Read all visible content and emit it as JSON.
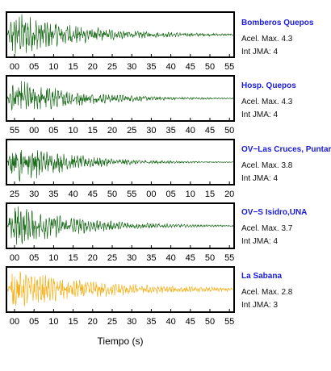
{
  "chart_data": {
    "type": "line",
    "xlabel": "Tiempo (s)",
    "panels": [
      {
        "station": "Bomberos Quepos",
        "acel_label": "Acel. Max. 4.3",
        "jma_label": "Int JMA: 4",
        "color": "#1a6b1a",
        "amplitude": 1.0,
        "decay": 0.055,
        "tick_labels": [
          "00",
          "05",
          "10",
          "15",
          "20",
          "25",
          "30",
          "35",
          "40",
          "45",
          "50",
          "55"
        ]
      },
      {
        "station": "Hosp. Quepos",
        "acel_label": "Acel. Max. 4.3",
        "jma_label": "Int JMA: 4",
        "color": "#1a6b1a",
        "amplitude": 0.85,
        "decay": 0.06,
        "tick_labels": [
          "55",
          "00",
          "05",
          "10",
          "15",
          "20",
          "25",
          "30",
          "35",
          "40",
          "45",
          "50"
        ]
      },
      {
        "station": "OV−Las Cruces, Puntar",
        "acel_label": "Acel. Max. 3.8",
        "jma_label": "Int JMA: 4",
        "color": "#1a6b1a",
        "amplitude": 1.0,
        "decay": 0.07,
        "tick_labels": [
          "25",
          "30",
          "35",
          "40",
          "45",
          "50",
          "55",
          "00",
          "05",
          "10",
          "15",
          "20"
        ]
      },
      {
        "station": "OV−S Isidro,UNA",
        "acel_label": "Acel. Max. 3.7",
        "jma_label": "Int JMA: 4",
        "color": "#1a6b1a",
        "amplitude": 0.95,
        "decay": 0.06,
        "tick_labels": [
          "00",
          "05",
          "10",
          "15",
          "20",
          "25",
          "30",
          "35",
          "40",
          "45",
          "50",
          "55"
        ]
      },
      {
        "station": "La Sabana",
        "acel_label": "Acel. Max. 2.8",
        "jma_label": "Int JMA: 3",
        "color": "#f5b21e",
        "amplitude": 0.8,
        "decay": 0.04,
        "tick_labels": [
          "00",
          "05",
          "10",
          "15",
          "20",
          "25",
          "30",
          "35",
          "40",
          "45",
          "50",
          "55"
        ]
      }
    ]
  }
}
